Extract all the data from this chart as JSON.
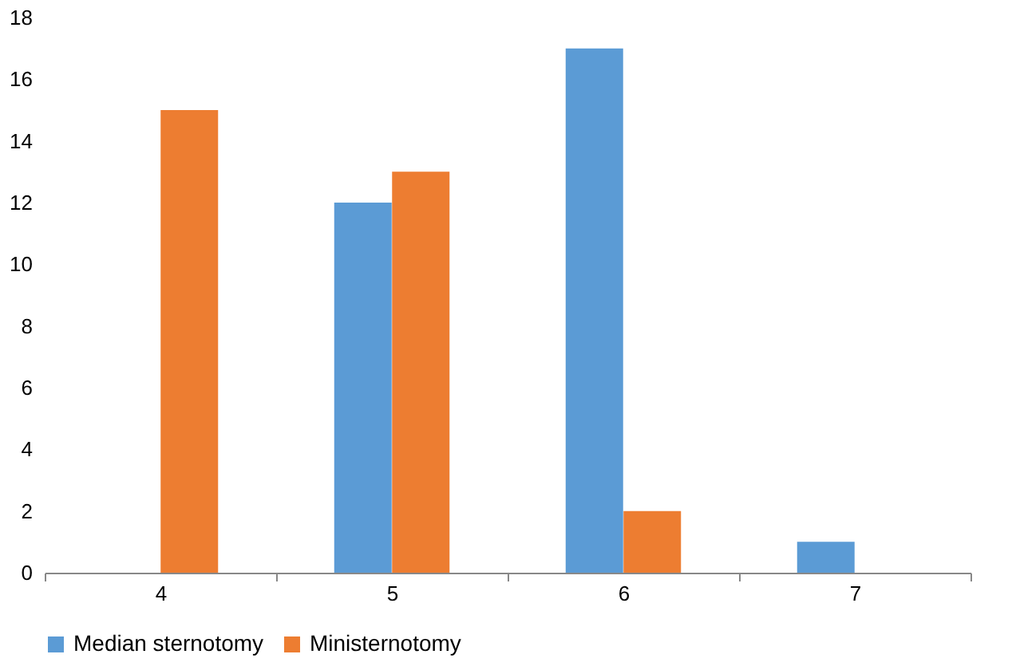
{
  "chart_data": {
    "type": "bar",
    "categories": [
      "4",
      "5",
      "6",
      "7"
    ],
    "series": [
      {
        "name": "Median sternotomy",
        "color": "#5b9bd5",
        "values": [
          null,
          12,
          17,
          1
        ]
      },
      {
        "name": "Ministernotomy",
        "color": "#ed7d31",
        "values": [
          15,
          13,
          2,
          null
        ]
      }
    ],
    "ylim": [
      0,
      18
    ],
    "yticks": [
      0,
      2,
      4,
      6,
      8,
      10,
      12,
      14,
      16,
      18
    ],
    "grid": false,
    "legend": "bottom"
  }
}
